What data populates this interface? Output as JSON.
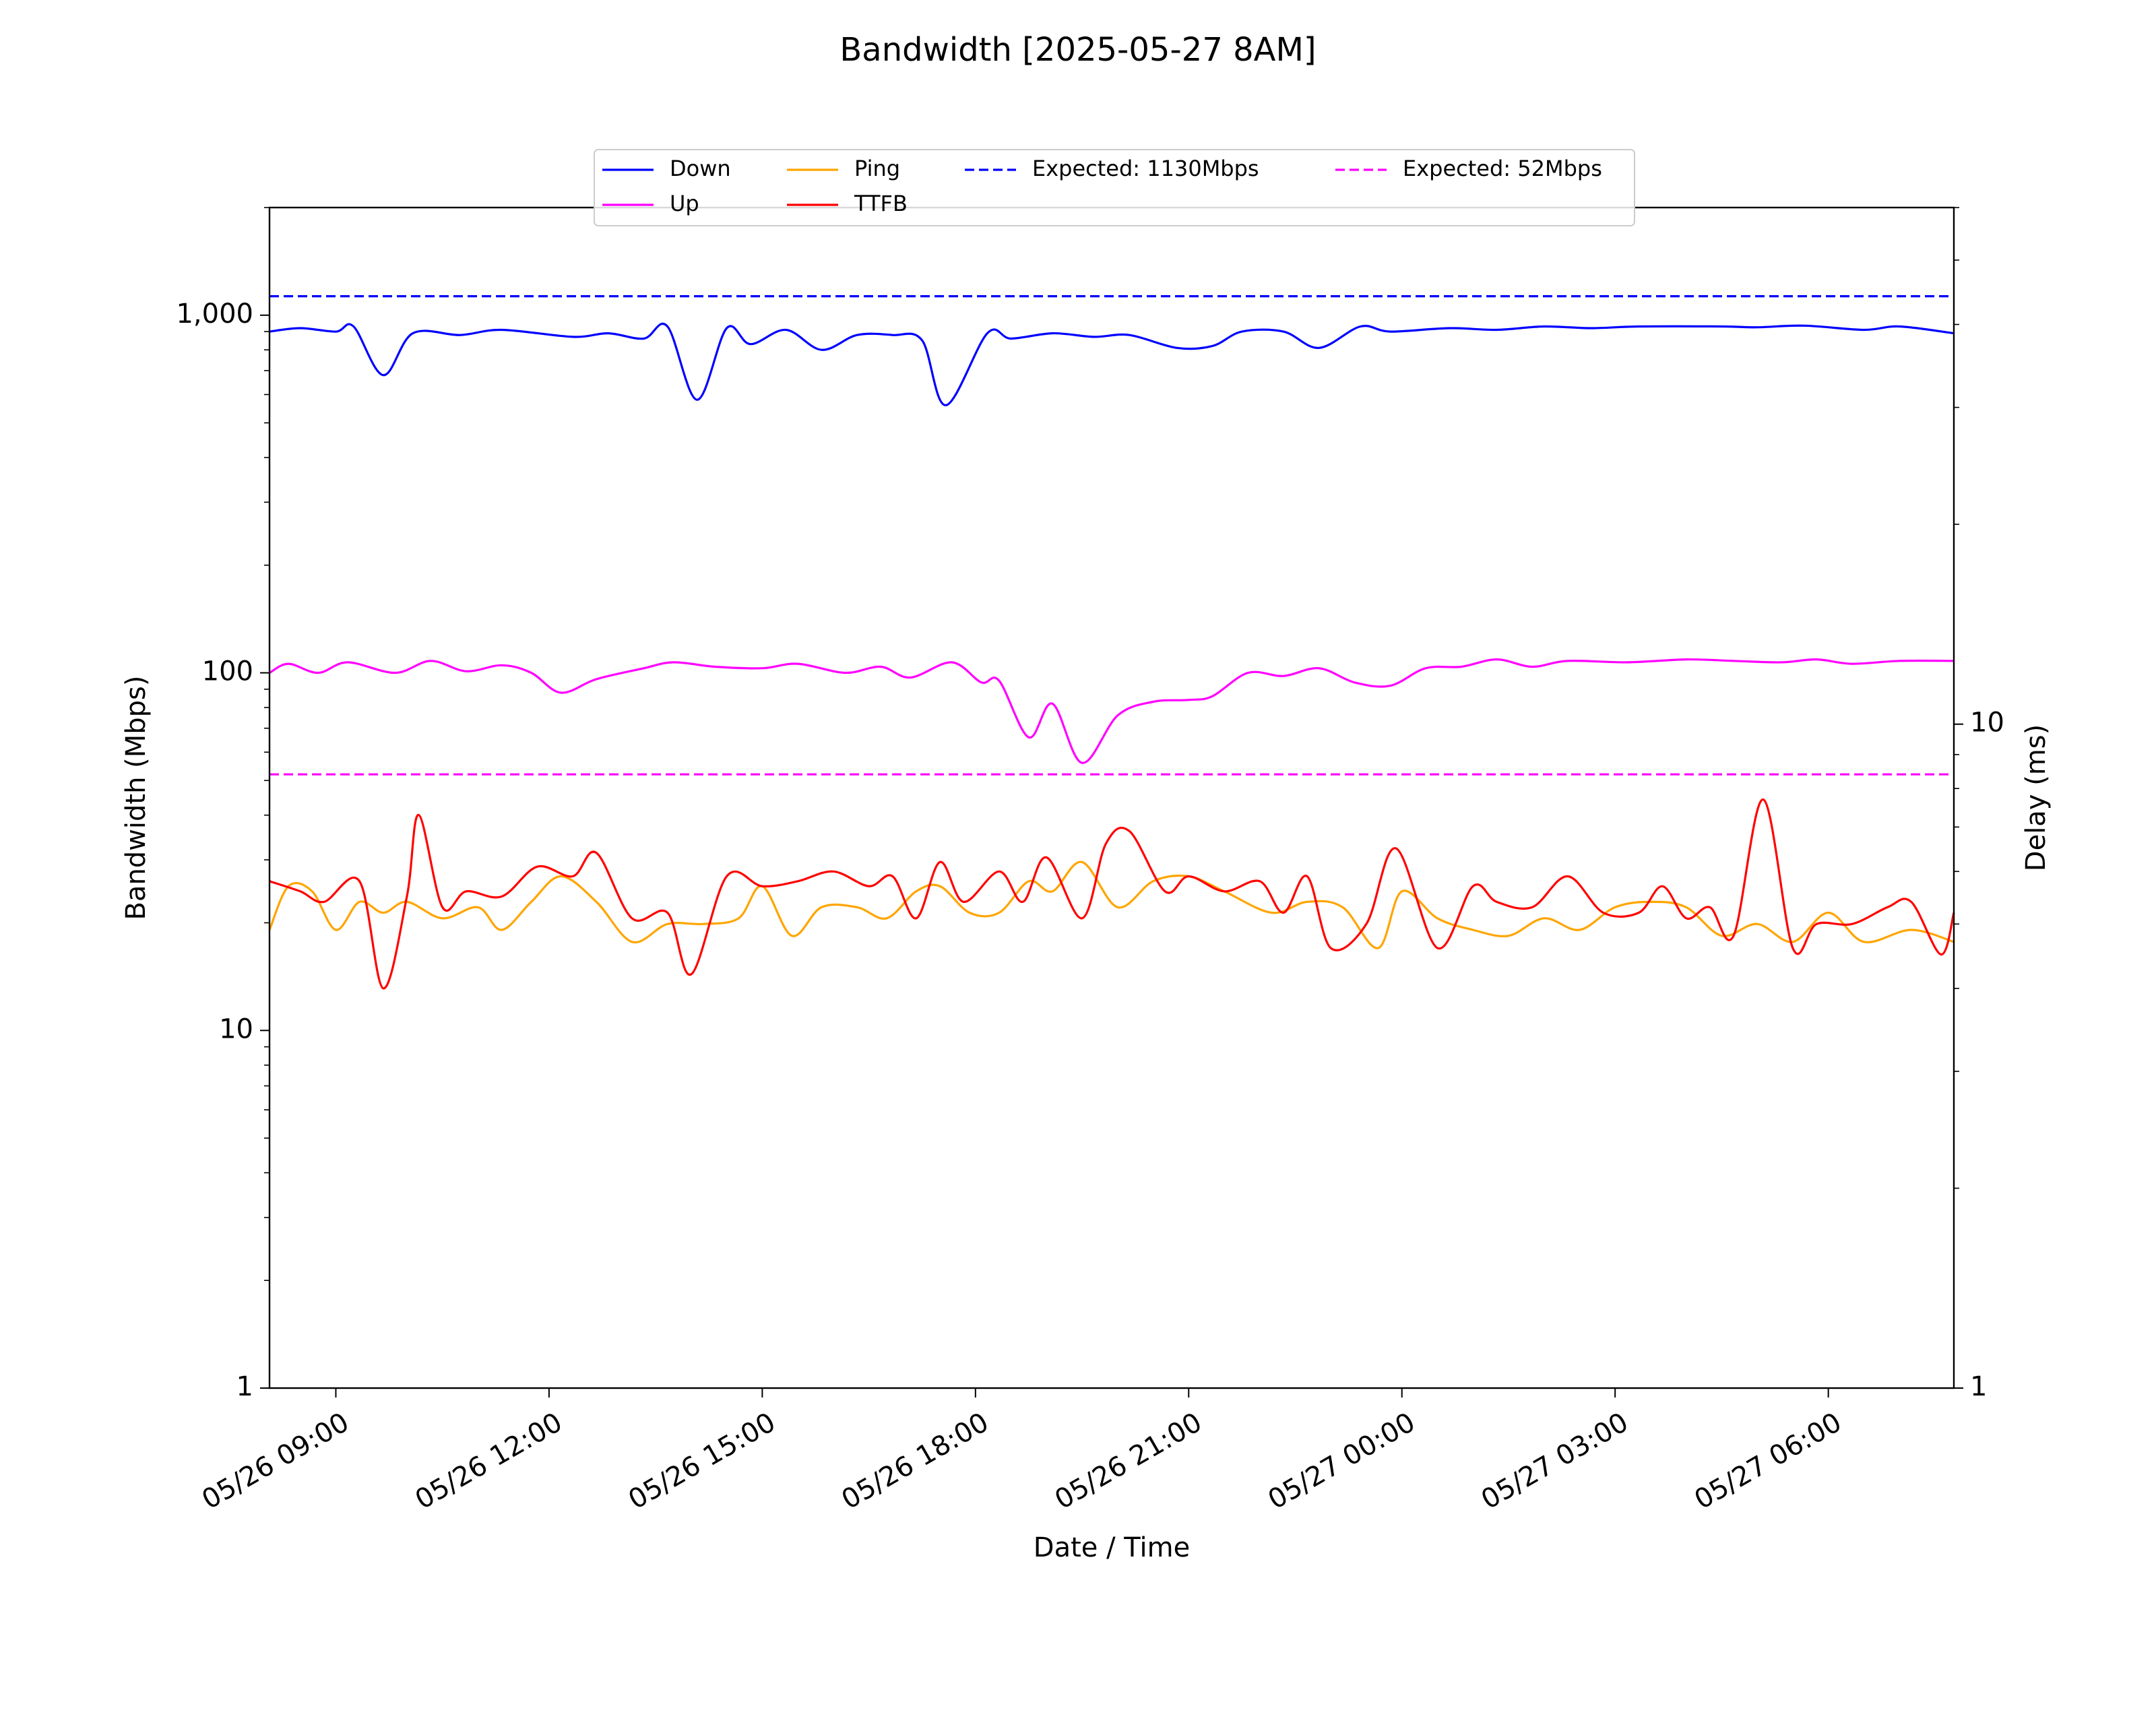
{
  "chart_data": {
    "type": "line",
    "title": "Bandwidth [2025-05-27 8AM]",
    "xlabel": "Date / Time",
    "ylabel": "Bandwidth (Mbps)",
    "y2label": "Delay (ms)",
    "x_range": [
      "05/26 08:04",
      "05/27 07:46"
    ],
    "ylim": [
      1,
      2000
    ],
    "y_scale": "log",
    "y2lim": [
      1,
      60
    ],
    "y2_scale": "log",
    "x_ticks": [
      "05/26 09:00",
      "05/26 12:00",
      "05/26 15:00",
      "05/26 18:00",
      "05/26 21:00",
      "05/27 00:00",
      "05/27 03:00",
      "05/27 06:00"
    ],
    "y_ticks": [
      "1",
      "10",
      "100",
      "1,000"
    ],
    "y2_ticks": [
      "1",
      "10"
    ],
    "legend_position": "top-center",
    "series": [
      {
        "name": "Down",
        "color": "#0000ff",
        "style": "solid",
        "axis": "left",
        "points": [
          [
            "05/26 08:04",
            900
          ],
          [
            "05/26 08:30",
            920
          ],
          [
            "05/26 09:00",
            900
          ],
          [
            "05/26 09:15",
            930
          ],
          [
            "05/26 09:40",
            680
          ],
          [
            "05/26 10:05",
            890
          ],
          [
            "05/26 10:45",
            880
          ],
          [
            "05/26 11:20",
            910
          ],
          [
            "05/26 12:20",
            870
          ],
          [
            "05/26 12:50",
            890
          ],
          [
            "05/26 13:20",
            860
          ],
          [
            "05/26 13:40",
            930
          ],
          [
            "05/26 14:05",
            580
          ],
          [
            "05/26 14:30",
            920
          ],
          [
            "05/26 14:50",
            830
          ],
          [
            "05/26 15:20",
            910
          ],
          [
            "05/26 15:50",
            800
          ],
          [
            "05/26 16:20",
            880
          ],
          [
            "05/26 16:50",
            880
          ],
          [
            "05/26 17:15",
            850
          ],
          [
            "05/26 17:35",
            560
          ],
          [
            "05/26 18:10",
            890
          ],
          [
            "05/26 18:30",
            860
          ],
          [
            "05/26 19:05",
            890
          ],
          [
            "05/26 19:40",
            870
          ],
          [
            "05/26 20:10",
            880
          ],
          [
            "05/26 20:50",
            810
          ],
          [
            "05/26 21:20",
            820
          ],
          [
            "05/26 21:45",
            900
          ],
          [
            "05/26 22:20",
            900
          ],
          [
            "05/26 22:50",
            810
          ],
          [
            "05/26 23:25",
            930
          ],
          [
            "05/26 23:50",
            900
          ],
          [
            "05/27 00:40",
            920
          ],
          [
            "05/27 01:20",
            910
          ],
          [
            "05/27 02:00",
            930
          ],
          [
            "05/27 02:40",
            920
          ],
          [
            "05/27 03:20",
            930
          ],
          [
            "05/27 04:30",
            930
          ],
          [
            "05/27 05:00",
            925
          ],
          [
            "05/27 05:40",
            935
          ],
          [
            "05/27 06:30",
            910
          ],
          [
            "05/27 07:00",
            930
          ],
          [
            "05/27 07:46",
            890
          ]
        ]
      },
      {
        "name": "Up",
        "color": "#ff00ff",
        "style": "solid",
        "axis": "left",
        "points": [
          [
            "05/26 08:04",
            100
          ],
          [
            "05/26 08:20",
            106
          ],
          [
            "05/26 08:45",
            100
          ],
          [
            "05/26 09:10",
            107
          ],
          [
            "05/26 09:50",
            100
          ],
          [
            "05/26 10:20",
            108
          ],
          [
            "05/26 10:50",
            101
          ],
          [
            "05/26 11:20",
            105
          ],
          [
            "05/26 11:45",
            100
          ],
          [
            "05/26 12:10",
            88
          ],
          [
            "05/26 12:40",
            96
          ],
          [
            "05/26 13:20",
            103
          ],
          [
            "05/26 13:45",
            107
          ],
          [
            "05/26 14:20",
            104
          ],
          [
            "05/26 15:00",
            103
          ],
          [
            "05/26 15:30",
            106
          ],
          [
            "05/26 16:10",
            100
          ],
          [
            "05/26 16:40",
            104
          ],
          [
            "05/26 17:05",
            97
          ],
          [
            "05/26 17:40",
            107
          ],
          [
            "05/26 18:05",
            94
          ],
          [
            "05/26 18:20",
            95
          ],
          [
            "05/26 18:45",
            66
          ],
          [
            "05/26 19:05",
            82
          ],
          [
            "05/26 19:30",
            56
          ],
          [
            "05/26 20:00",
            76
          ],
          [
            "05/26 20:30",
            83
          ],
          [
            "05/26 21:00",
            84
          ],
          [
            "05/26 21:20",
            86
          ],
          [
            "05/26 21:50",
            100
          ],
          [
            "05/26 22:20",
            98
          ],
          [
            "05/26 22:50",
            103
          ],
          [
            "05/26 23:20",
            94
          ],
          [
            "05/26 23:50",
            92
          ],
          [
            "05/27 00:20",
            103
          ],
          [
            "05/27 00:50",
            104
          ],
          [
            "05/27 01:20",
            109
          ],
          [
            "05/27 01:50",
            104
          ],
          [
            "05/27 02:20",
            108
          ],
          [
            "05/27 03:10",
            107
          ],
          [
            "05/27 04:00",
            109
          ],
          [
            "05/27 04:40",
            108
          ],
          [
            "05/27 05:20",
            107
          ],
          [
            "05/27 05:50",
            109
          ],
          [
            "05/27 06:20",
            106
          ],
          [
            "05/27 07:00",
            108
          ],
          [
            "05/27 07:46",
            108
          ]
        ]
      },
      {
        "name": "Ping",
        "color": "#ffa500",
        "style": "solid",
        "axis": "right",
        "points": [
          [
            "05/26 08:04",
            4.9
          ],
          [
            "05/26 08:20",
            5.7
          ],
          [
            "05/26 08:40",
            5.6
          ],
          [
            "05/26 09:00",
            4.9
          ],
          [
            "05/26 09:20",
            5.4
          ],
          [
            "05/26 09:40",
            5.2
          ],
          [
            "05/26 10:00",
            5.4
          ],
          [
            "05/26 10:30",
            5.1
          ],
          [
            "05/26 11:00",
            5.3
          ],
          [
            "05/26 11:20",
            4.9
          ],
          [
            "05/26 11:45",
            5.4
          ],
          [
            "05/26 12:10",
            5.9
          ],
          [
            "05/26 12:40",
            5.4
          ],
          [
            "05/26 13:10",
            4.7
          ],
          [
            "05/26 13:40",
            5.0
          ],
          [
            "05/26 14:10",
            5.0
          ],
          [
            "05/26 14:40",
            5.1
          ],
          [
            "05/26 15:00",
            5.7
          ],
          [
            "05/26 15:25",
            4.8
          ],
          [
            "05/26 15:50",
            5.3
          ],
          [
            "05/26 16:20",
            5.3
          ],
          [
            "05/26 16:45",
            5.1
          ],
          [
            "05/26 17:10",
            5.6
          ],
          [
            "05/26 17:30",
            5.7
          ],
          [
            "05/26 17:55",
            5.2
          ],
          [
            "05/26 18:20",
            5.2
          ],
          [
            "05/26 18:45",
            5.8
          ],
          [
            "05/26 19:05",
            5.6
          ],
          [
            "05/26 19:30",
            6.2
          ],
          [
            "05/26 20:00",
            5.3
          ],
          [
            "05/26 20:30",
            5.8
          ],
          [
            "05/26 21:00",
            5.9
          ],
          [
            "05/26 21:30",
            5.6
          ],
          [
            "05/26 22:10",
            5.2
          ],
          [
            "05/26 22:40",
            5.4
          ],
          [
            "05/26 23:10",
            5.3
          ],
          [
            "05/26 23:40",
            4.6
          ],
          [
            "05/27 00:00",
            5.6
          ],
          [
            "05/27 00:30",
            5.1
          ],
          [
            "05/27 01:00",
            4.9
          ],
          [
            "05/27 01:30",
            4.8
          ],
          [
            "05/27 02:00",
            5.1
          ],
          [
            "05/27 02:30",
            4.9
          ],
          [
            "05/27 03:00",
            5.3
          ],
          [
            "05/27 03:30",
            5.4
          ],
          [
            "05/27 04:00",
            5.3
          ],
          [
            "05/27 04:30",
            4.8
          ],
          [
            "05/27 05:00",
            5.0
          ],
          [
            "05/27 05:30",
            4.7
          ],
          [
            "05/27 06:00",
            5.2
          ],
          [
            "05/27 06:30",
            4.7
          ],
          [
            "05/27 07:10",
            4.9
          ],
          [
            "05/27 07:46",
            4.7
          ]
        ]
      },
      {
        "name": "TTFB",
        "color": "#ff0000",
        "style": "solid",
        "axis": "right",
        "points": [
          [
            "05/26 08:04",
            5.8
          ],
          [
            "05/26 08:30",
            5.6
          ],
          [
            "05/26 08:50",
            5.4
          ],
          [
            "05/26 09:20",
            5.8
          ],
          [
            "05/26 09:40",
            4.0
          ],
          [
            "05/26 10:00",
            5.5
          ],
          [
            "05/26 10:10",
            7.3
          ],
          [
            "05/26 10:30",
            5.3
          ],
          [
            "05/26 10:50",
            5.6
          ],
          [
            "05/26 11:20",
            5.5
          ],
          [
            "05/26 11:50",
            6.1
          ],
          [
            "05/26 12:20",
            5.9
          ],
          [
            "05/26 12:40",
            6.4
          ],
          [
            "05/26 13:10",
            5.1
          ],
          [
            "05/26 13:40",
            5.2
          ],
          [
            "05/26 14:00",
            4.2
          ],
          [
            "05/26 14:30",
            5.9
          ],
          [
            "05/26 15:00",
            5.7
          ],
          [
            "05/26 15:30",
            5.8
          ],
          [
            "05/26 16:00",
            6.0
          ],
          [
            "05/26 16:30",
            5.7
          ],
          [
            "05/26 16:50",
            5.9
          ],
          [
            "05/26 17:10",
            5.1
          ],
          [
            "05/26 17:30",
            6.2
          ],
          [
            "05/26 17:50",
            5.4
          ],
          [
            "05/26 18:20",
            6.0
          ],
          [
            "05/26 18:40",
            5.4
          ],
          [
            "05/26 19:00",
            6.3
          ],
          [
            "05/26 19:30",
            5.1
          ],
          [
            "05/26 19:50",
            6.6
          ],
          [
            "05/26 20:10",
            6.9
          ],
          [
            "05/26 20:40",
            5.6
          ],
          [
            "05/26 21:00",
            5.9
          ],
          [
            "05/26 21:30",
            5.6
          ],
          [
            "05/26 22:00",
            5.8
          ],
          [
            "05/26 22:20",
            5.2
          ],
          [
            "05/26 22:40",
            5.9
          ],
          [
            "05/26 23:00",
            4.6
          ],
          [
            "05/26 23:30",
            5.0
          ],
          [
            "05/26 23:55",
            6.5
          ],
          [
            "05/27 00:30",
            4.6
          ],
          [
            "05/27 01:00",
            5.7
          ],
          [
            "05/27 01:20",
            5.4
          ],
          [
            "05/27 01:50",
            5.3
          ],
          [
            "05/27 02:20",
            5.9
          ],
          [
            "05/27 02:50",
            5.2
          ],
          [
            "05/27 03:20",
            5.2
          ],
          [
            "05/27 03:40",
            5.7
          ],
          [
            "05/27 04:00",
            5.1
          ],
          [
            "05/27 04:20",
            5.3
          ],
          [
            "05/27 04:40",
            4.8
          ],
          [
            "05/27 05:05",
            7.7
          ],
          [
            "05/27 05:30",
            4.6
          ],
          [
            "05/27 05:50",
            5.0
          ],
          [
            "05/27 06:20",
            5.0
          ],
          [
            "05/27 06:50",
            5.3
          ],
          [
            "05/27 07:10",
            5.4
          ],
          [
            "05/27 07:35",
            4.5
          ],
          [
            "05/27 07:46",
            5.2
          ]
        ]
      },
      {
        "name": "Expected: 1130Mbps",
        "color": "#0000ff",
        "style": "dashed",
        "axis": "left",
        "points": [
          [
            "05/26 08:04",
            1130
          ],
          [
            "05/27 07:46",
            1130
          ]
        ]
      },
      {
        "name": "Expected: 52Mbps",
        "color": "#ff00ff",
        "style": "dashed",
        "axis": "left",
        "points": [
          [
            "05/26 08:04",
            52
          ],
          [
            "05/27 07:46",
            52
          ]
        ]
      }
    ]
  }
}
